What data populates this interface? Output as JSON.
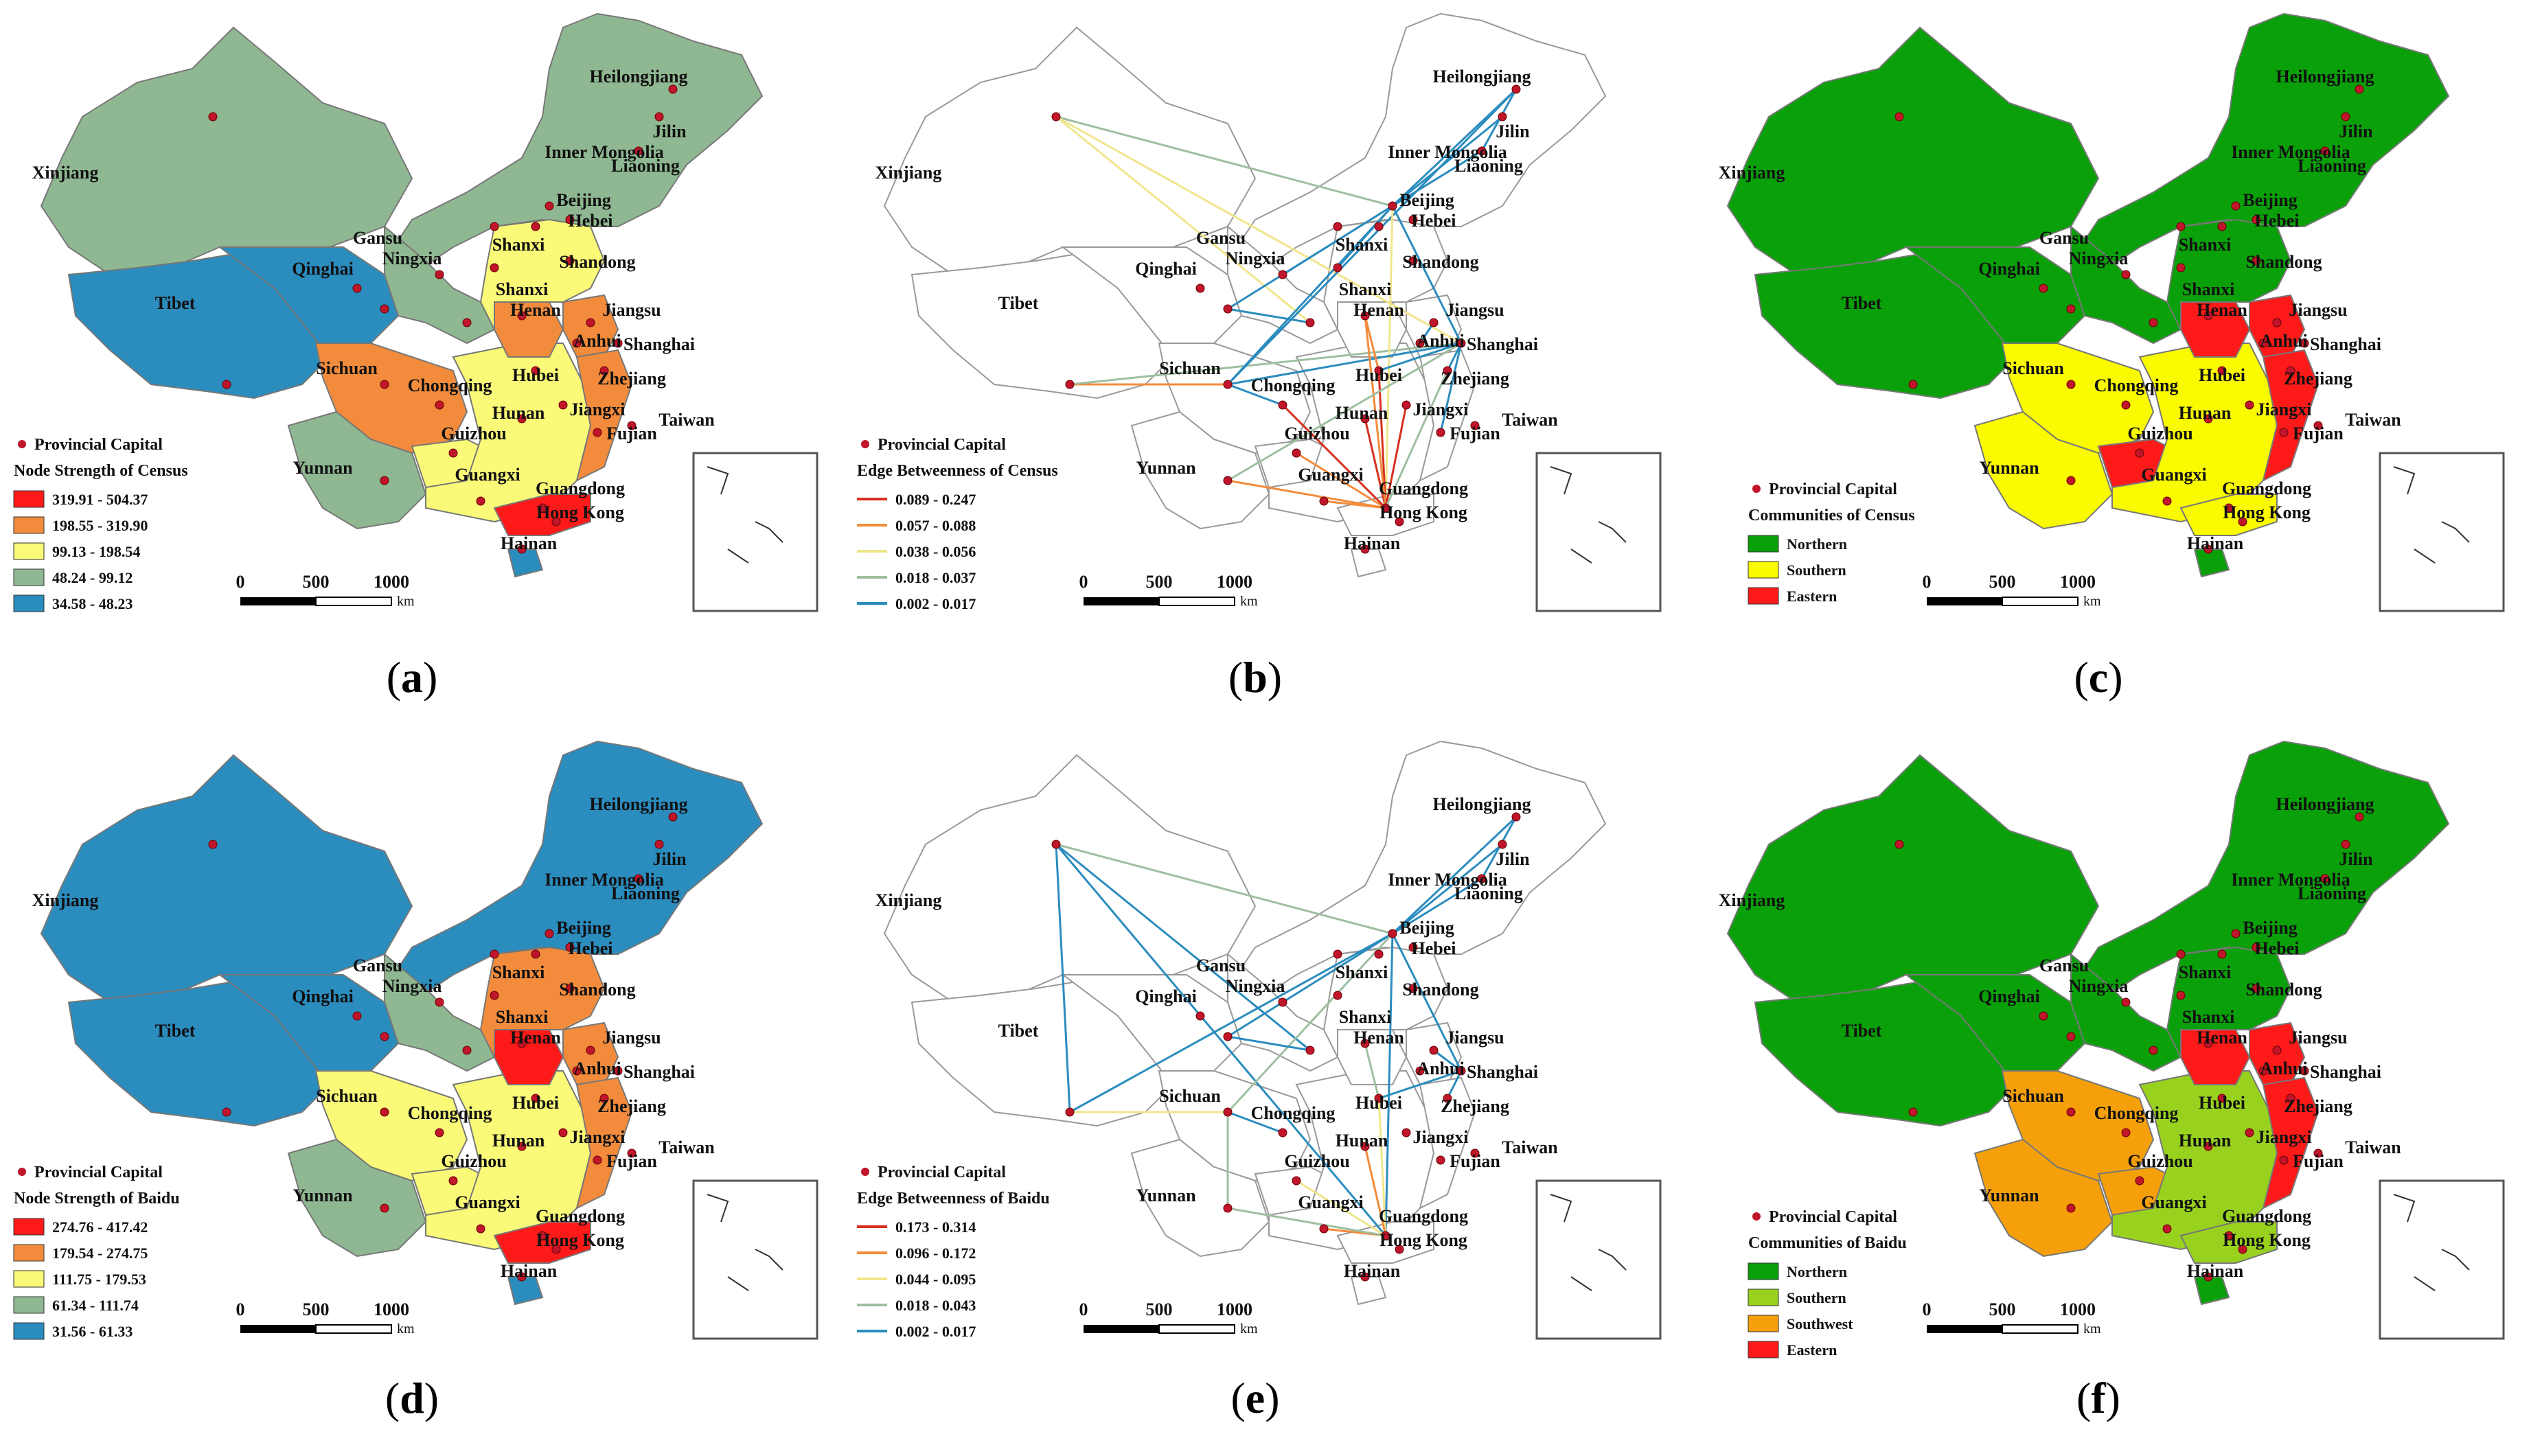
{
  "panels": [
    {
      "id": "a",
      "caption": "a",
      "type": "choropleth",
      "legend_title": "Node Strength of Census",
      "capital_label": "Provincial Capital",
      "classes": [
        {
          "label": "319.91 - 504.37",
          "color": "#ff1a1a"
        },
        {
          "label": "198.55 - 319.90",
          "color": "#f28c3c"
        },
        {
          "label": "99.13 - 198.54",
          "color": "#fafa78"
        },
        {
          "label": "48.24 - 99.12",
          "color": "#8fb892"
        },
        {
          "label": "34.58 - 48.23",
          "color": "#2b8cbe"
        }
      ],
      "fills": {
        "northeast": "#8fb892",
        "xinjiang": "#8fb892",
        "tibet": "#2b8cbe",
        "qinghai": "#2b8cbe",
        "gansu": "#8fb892",
        "sichuan": "#f28c3c",
        "yunnan": "#8fb892",
        "southcentral": "#fafa78",
        "east": "#fafa78",
        "henan": "#f28c3c",
        "jiangsu": "#f28c3c",
        "guangdong": "#ff1a1a",
        "guizhou": "#fafa78",
        "coast": "#f28c3c",
        "hainan": "#2b8cbe"
      }
    },
    {
      "id": "b",
      "caption": "b",
      "type": "network",
      "legend_title": "Edge Betweenness of Census",
      "capital_label": "Provincial Capital",
      "classes": [
        {
          "label": "0.089 - 0.247",
          "color": "#d7301f"
        },
        {
          "label": "0.057 - 0.088",
          "color": "#f28c3c"
        },
        {
          "label": "0.038 - 0.056",
          "color": "#f0e68c"
        },
        {
          "label": "0.018 - 0.037",
          "color": "#9fbfa0"
        },
        {
          "label": "0.002 - 0.017",
          "color": "#2b8cbe"
        }
      ]
    },
    {
      "id": "c",
      "caption": "c",
      "type": "choropleth",
      "legend_title": "Communities of Census",
      "capital_label": "Provincial Capital",
      "classes": [
        {
          "label": "Northern",
          "color": "#0aa00a"
        },
        {
          "label": "Southern",
          "color": "#fafa00"
        },
        {
          "label": "Eastern",
          "color": "#ff1a1a"
        }
      ],
      "fills": {
        "northeast": "#0aa00a",
        "xinjiang": "#0aa00a",
        "tibet": "#0aa00a",
        "qinghai": "#0aa00a",
        "gansu": "#0aa00a",
        "sichuan": "#fafa00",
        "yunnan": "#fafa00",
        "southcentral": "#fafa00",
        "east": "#0aa00a",
        "henan": "#ff1a1a",
        "jiangsu": "#ff1a1a",
        "guangdong": "#fafa00",
        "guizhou": "#ff1a1a",
        "coast": "#ff1a1a",
        "hainan": "#0aa00a"
      }
    },
    {
      "id": "d",
      "caption": "d",
      "type": "choropleth",
      "legend_title": "Node Strength of Baidu",
      "capital_label": "Provincial Capital",
      "classes": [
        {
          "label": "274.76 - 417.42",
          "color": "#ff1a1a"
        },
        {
          "label": "179.54 - 274.75",
          "color": "#f28c3c"
        },
        {
          "label": "111.75 - 179.53",
          "color": "#fafa78"
        },
        {
          "label": "61.34 - 111.74",
          "color": "#8fb892"
        },
        {
          "label": "31.56 - 61.33",
          "color": "#2b8cbe"
        }
      ],
      "fills": {
        "northeast": "#2b8cbe",
        "xinjiang": "#2b8cbe",
        "tibet": "#2b8cbe",
        "qinghai": "#2b8cbe",
        "gansu": "#8fb892",
        "sichuan": "#fafa78",
        "yunnan": "#8fb892",
        "southcentral": "#fafa78",
        "east": "#f28c3c",
        "henan": "#ff1a1a",
        "jiangsu": "#f28c3c",
        "guangdong": "#ff1a1a",
        "guizhou": "#fafa78",
        "coast": "#f28c3c",
        "hainan": "#2b8cbe"
      }
    },
    {
      "id": "e",
      "caption": "e",
      "type": "network",
      "legend_title": "Edge Betweenness of Baidu",
      "capital_label": "Provincial Capital",
      "classes": [
        {
          "label": "0.173 - 0.314",
          "color": "#d7301f"
        },
        {
          "label": "0.096 - 0.172",
          "color": "#f28c3c"
        },
        {
          "label": "0.044 - 0.095",
          "color": "#f0e68c"
        },
        {
          "label": "0.018 - 0.043",
          "color": "#9fbfa0"
        },
        {
          "label": "0.002 - 0.017",
          "color": "#2b8cbe"
        }
      ]
    },
    {
      "id": "f",
      "caption": "f",
      "type": "choropleth",
      "legend_title": "Communities of Baidu",
      "capital_label": "Provincial Capital",
      "classes": [
        {
          "label": "Northern",
          "color": "#0aa00a"
        },
        {
          "label": "Southern",
          "color": "#99d21e"
        },
        {
          "label": "Southwest",
          "color": "#f5a00a"
        },
        {
          "label": "Eastern",
          "color": "#ff1a1a"
        }
      ],
      "fills": {
        "northeast": "#0aa00a",
        "xinjiang": "#0aa00a",
        "tibet": "#0aa00a",
        "qinghai": "#0aa00a",
        "gansu": "#0aa00a",
        "sichuan": "#f5a00a",
        "yunnan": "#f5a00a",
        "southcentral": "#99d21e",
        "east": "#0aa00a",
        "henan": "#ff1a1a",
        "jiangsu": "#ff1a1a",
        "guangdong": "#99d21e",
        "guizhou": "#f5a00a",
        "coast": "#ff1a1a",
        "hainan": "#0aa00a"
      }
    }
  ],
  "province_labels": [
    "Heilongjiang",
    "Jilin",
    "Inner Mongolia",
    "Liaoning",
    "Xinjiang",
    "Beijing",
    "Hebei",
    "Gansu",
    "Shanxi",
    "Ningxia",
    "Shandong",
    "Qinghai",
    "Shanxi",
    "Henan",
    "Jiangsu",
    "Tibet",
    "Anhui",
    "Shanghai",
    "Sichuan",
    "Hubei",
    "Zhejiang",
    "Chongqing",
    "Hunan",
    "Jiangxi",
    "Guizhou",
    "Fujian",
    "Yunnan",
    "Taiwan",
    "Guangxi",
    "Guangdong",
    "Hong Kong",
    "Hainan"
  ],
  "scale": {
    "ticks": [
      "0",
      "500",
      "1000"
    ],
    "unit": "km"
  }
}
